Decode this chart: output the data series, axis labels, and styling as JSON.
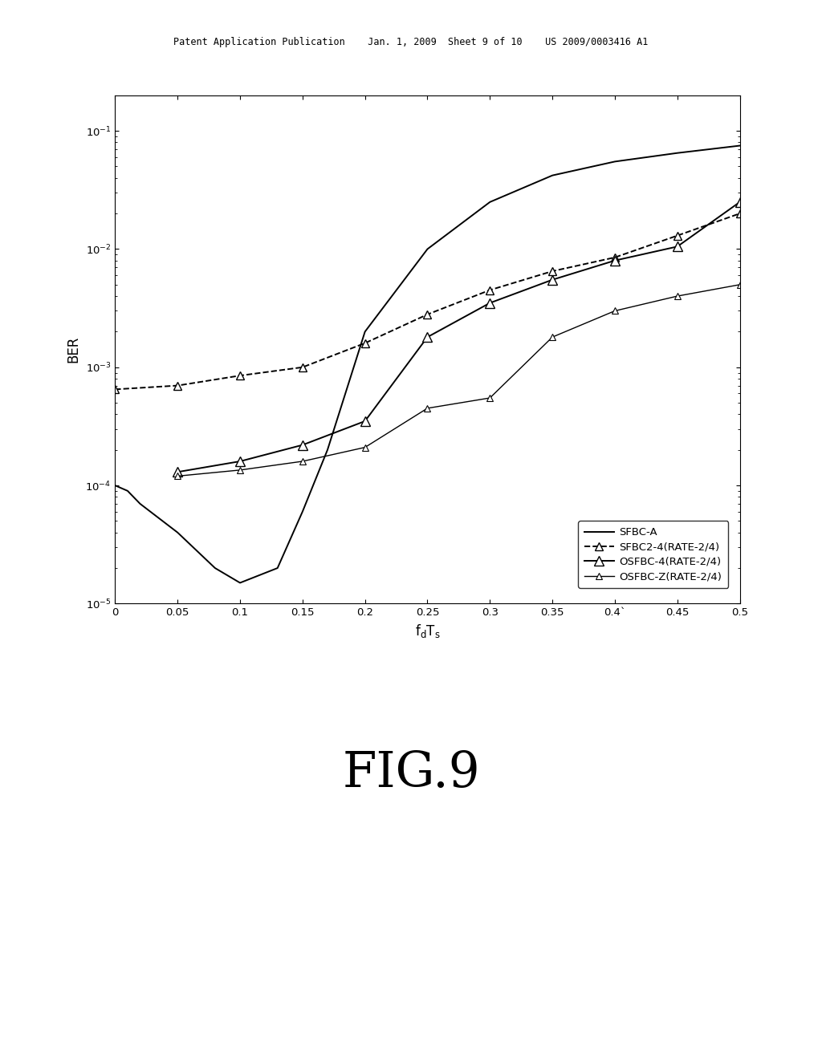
{
  "header_text": "Patent Application Publication    Jan. 1, 2009  Sheet 9 of 10    US 2009/0003416 A1",
  "fig_label": "FIG.9",
  "ylabel": "BER",
  "xlim": [
    0,
    0.5
  ],
  "series": [
    {
      "label": "SFBC-A",
      "linestyle": "solid",
      "marker": "none",
      "x": [
        0,
        0.01,
        0.02,
        0.05,
        0.08,
        0.1,
        0.13,
        0.15,
        0.17,
        0.2,
        0.25,
        0.3,
        0.35,
        0.4,
        0.45,
        0.5
      ],
      "y": [
        0.0001,
        9e-05,
        7e-05,
        4e-05,
        2e-05,
        1.5e-05,
        2e-05,
        6e-05,
        0.0002,
        0.002,
        0.01,
        0.025,
        0.042,
        0.055,
        0.065,
        0.075
      ]
    },
    {
      "label": "SFBC2-4(RATE-2/4)",
      "linestyle": "dashed",
      "marker": "triangle",
      "x": [
        0,
        0.05,
        0.1,
        0.15,
        0.2,
        0.25,
        0.3,
        0.35,
        0.4,
        0.45,
        0.5
      ],
      "y": [
        0.00065,
        0.0007,
        0.00085,
        0.001,
        0.0016,
        0.0028,
        0.0045,
        0.0065,
        0.0085,
        0.013,
        0.02
      ]
    },
    {
      "label": "OSFBC-4(RATE-2/4)",
      "linestyle": "solid",
      "marker": "triangle",
      "x": [
        0.05,
        0.1,
        0.15,
        0.2,
        0.25,
        0.3,
        0.35,
        0.4,
        0.45,
        0.5
      ],
      "y": [
        0.00013,
        0.00016,
        0.00022,
        0.00035,
        0.0018,
        0.0035,
        0.0055,
        0.008,
        0.0105,
        0.025
      ]
    },
    {
      "label": "OSFBC-Z(RATE-2/4)",
      "linestyle": "solid",
      "marker": "triangle_small",
      "x": [
        0.05,
        0.1,
        0.15,
        0.2,
        0.25,
        0.3,
        0.35,
        0.4,
        0.45,
        0.5
      ],
      "y": [
        0.00012,
        0.000135,
        0.00016,
        0.00021,
        0.00045,
        0.00055,
        0.0018,
        0.003,
        0.004,
        0.005
      ]
    }
  ],
  "xticks": [
    0,
    0.05,
    0.1,
    0.15,
    0.2,
    0.25,
    0.3,
    0.35,
    0.4,
    0.45,
    0.5
  ],
  "xtick_labels": [
    "0",
    "0.05",
    "0.1",
    "0.15",
    "0.2",
    "0.25",
    "0.3",
    "0.35",
    "0.4`",
    "0.45",
    "0.5"
  ],
  "background_color": "#ffffff"
}
